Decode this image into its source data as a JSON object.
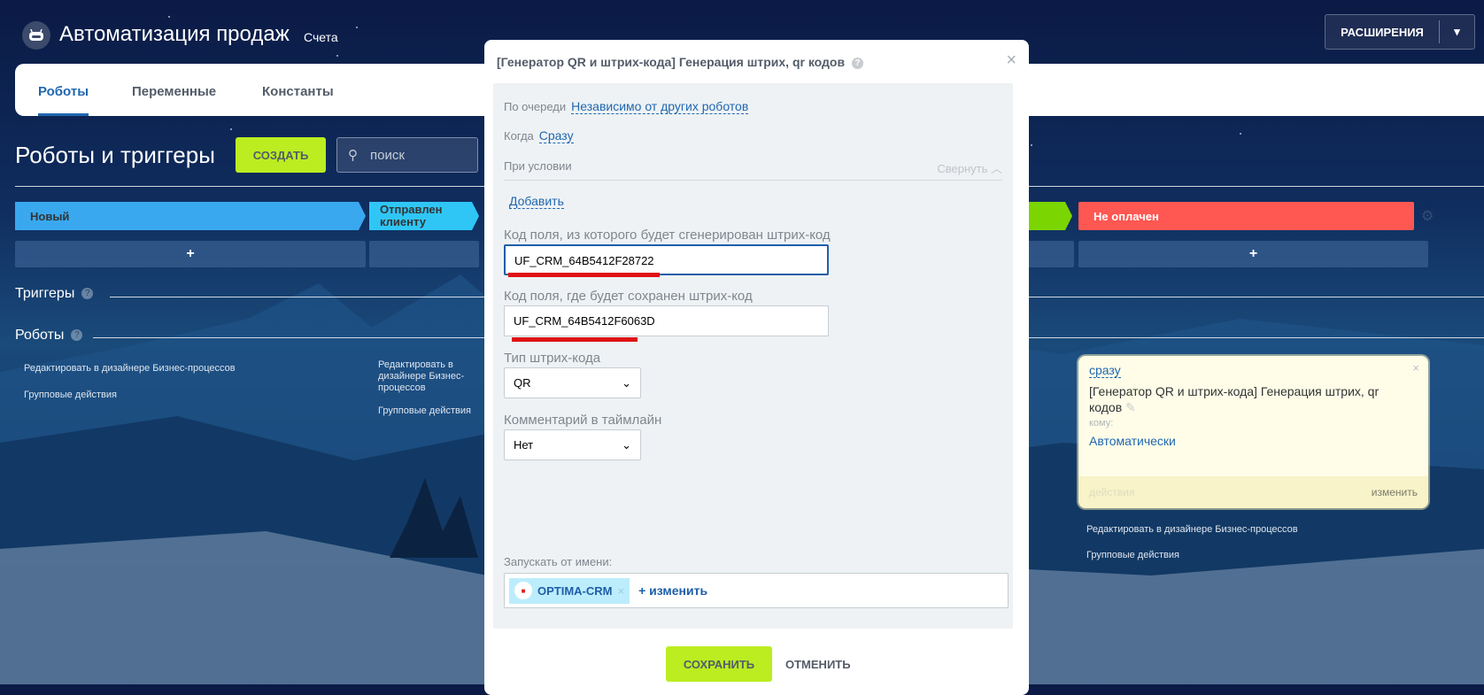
{
  "header": {
    "title": "Автоматизация продаж",
    "crumb": "Счета",
    "extensions_label": "РАСШИРЕНИЯ"
  },
  "tabs": [
    {
      "label": "Роботы",
      "active": true
    },
    {
      "label": "Переменные"
    },
    {
      "label": "Константы"
    }
  ],
  "toolbar": {
    "title": "Роботы и триггеры",
    "create_label": "СОЗДАТЬ",
    "search_placeholder": "поиск"
  },
  "stages": [
    {
      "label": "Новый",
      "color": "#39a8ef"
    },
    {
      "label": "Отправлен клиенту",
      "color": "#2fc6f6"
    },
    {
      "label": "",
      "color": "#7bd500"
    },
    {
      "label": "Не оплачен",
      "color": "#ff5752"
    }
  ],
  "add_symbol": "+",
  "sections": {
    "triggers": "Триггеры",
    "robots": "Роботы",
    "help": "?"
  },
  "column_links": {
    "edit_bp": "Редактировать в дизайнере Бизнес-процессов",
    "group_actions": "Групповые действия"
  },
  "robot_card": {
    "when": "сразу",
    "title": "[Генератор QR и штрих-кода] Генерация штрих, qr кодов",
    "to_label": "кому:",
    "to_value": "Автоматически",
    "actions_label": "действия",
    "edit_label": "изменить"
  },
  "modal": {
    "title": "[Генератор QR и штрих-кода] Генерация штрих, qr кодов",
    "order_label": "По очереди",
    "order_value": "Независимо от других роботов",
    "when_label": "Когда",
    "when_value": "Сразу",
    "condition_label": "При условии",
    "collapse_label": "Свернуть",
    "add_label": "Добавить",
    "source_field_label": "Код поля, из которого будет сгенерирован штрих-код",
    "source_field_value": "UF_CRM_64B5412F28722",
    "target_field_label": "Код поля, где будет сохранен штрих-код",
    "target_field_value": "UF_CRM_64B5412F6063D",
    "barcode_type_label": "Тип штрих-кода",
    "barcode_type_value": "QR",
    "timeline_comment_label": "Комментарий в таймлайн",
    "timeline_comment_value": "Нет",
    "run_as_label": "Запускать от имени:",
    "run_as_user": "OPTIMA-CRM",
    "change_label": "+ изменить",
    "save_label": "СОХРАНИТЬ",
    "cancel_label": "ОТМЕНИТЬ"
  },
  "colors": {
    "accent_green": "#bbed21",
    "link_blue": "#2067b0",
    "highlight_red": "#e01212"
  }
}
